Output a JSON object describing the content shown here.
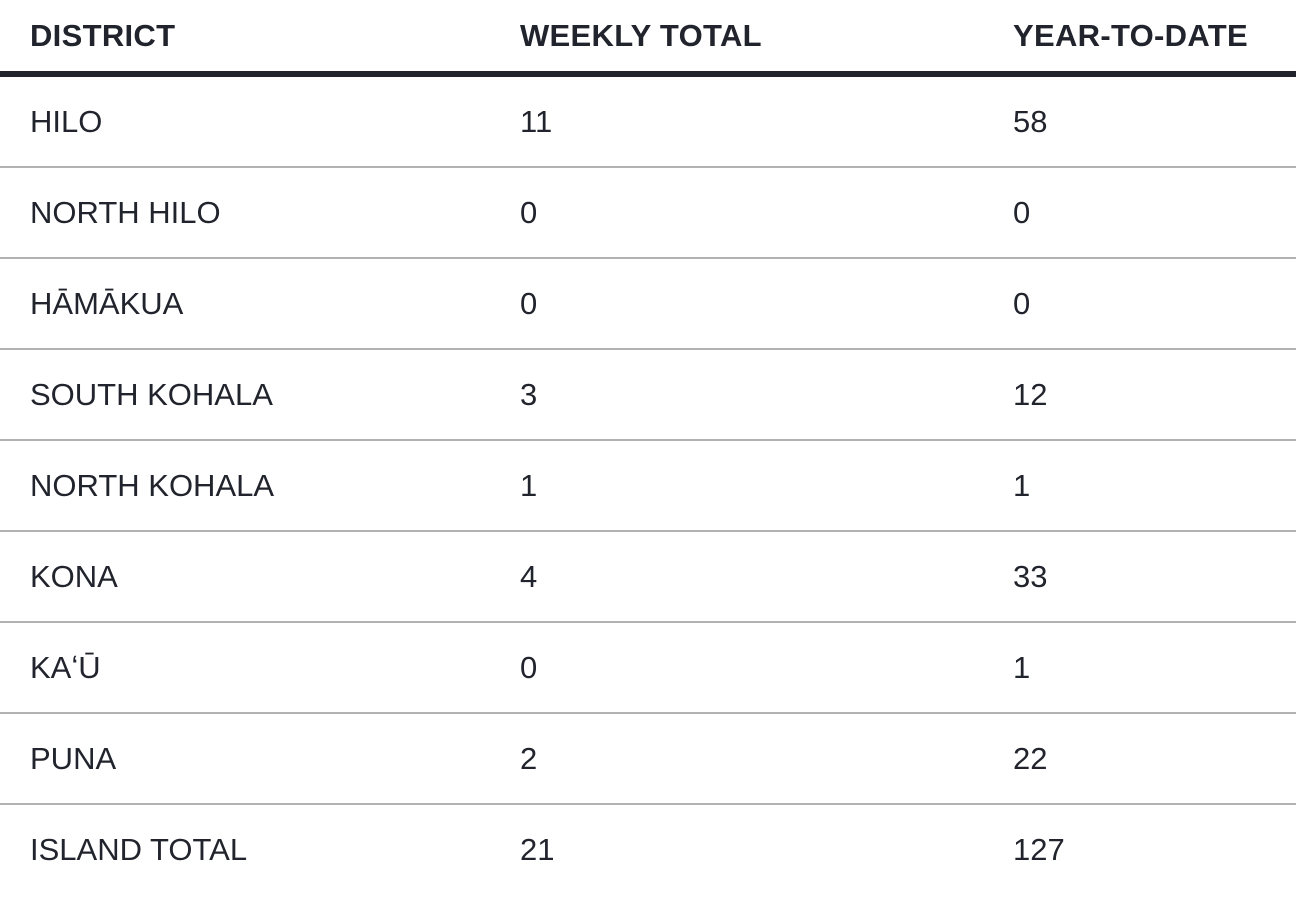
{
  "table": {
    "columns": [
      {
        "label": "DISTRICT"
      },
      {
        "label": "WEEKLY TOTAL"
      },
      {
        "label": "YEAR-TO-DATE"
      }
    ],
    "rows": [
      {
        "district": "HILO",
        "weekly": "11",
        "ytd": "58"
      },
      {
        "district": "NORTH HILO",
        "weekly": "0",
        "ytd": "0"
      },
      {
        "district": "HĀMĀKUA",
        "weekly": "0",
        "ytd": "0"
      },
      {
        "district": "SOUTH KOHALA",
        "weekly": "3",
        "ytd": "12"
      },
      {
        "district": "NORTH KOHALA",
        "weekly": "1",
        "ytd": "1"
      },
      {
        "district": "KONA",
        "weekly": "4",
        "ytd": "33"
      },
      {
        "district": "KAʻŪ",
        "weekly": "0",
        "ytd": "1"
      },
      {
        "district": "PUNA",
        "weekly": "2",
        "ytd": "22"
      },
      {
        "district": "ISLAND TOTAL",
        "weekly": "21",
        "ytd": "127"
      }
    ]
  },
  "chart_data": {
    "type": "table",
    "title": "",
    "columns": [
      "DISTRICT",
      "WEEKLY TOTAL",
      "YEAR-TO-DATE"
    ],
    "categories": [
      "HILO",
      "NORTH HILO",
      "HĀMĀKUA",
      "SOUTH KOHALA",
      "NORTH KOHALA",
      "KONA",
      "KAʻŪ",
      "PUNA",
      "ISLAND TOTAL"
    ],
    "series": [
      {
        "name": "WEEKLY TOTAL",
        "values": [
          11,
          0,
          0,
          3,
          1,
          4,
          0,
          2,
          21
        ]
      },
      {
        "name": "YEAR-TO-DATE",
        "values": [
          58,
          0,
          0,
          12,
          1,
          33,
          1,
          22,
          127
        ]
      }
    ]
  },
  "colors": {
    "text": "#21242c",
    "header_rule": "#21242c",
    "row_divider": "#b2b2b2",
    "background": "#ffffff"
  }
}
